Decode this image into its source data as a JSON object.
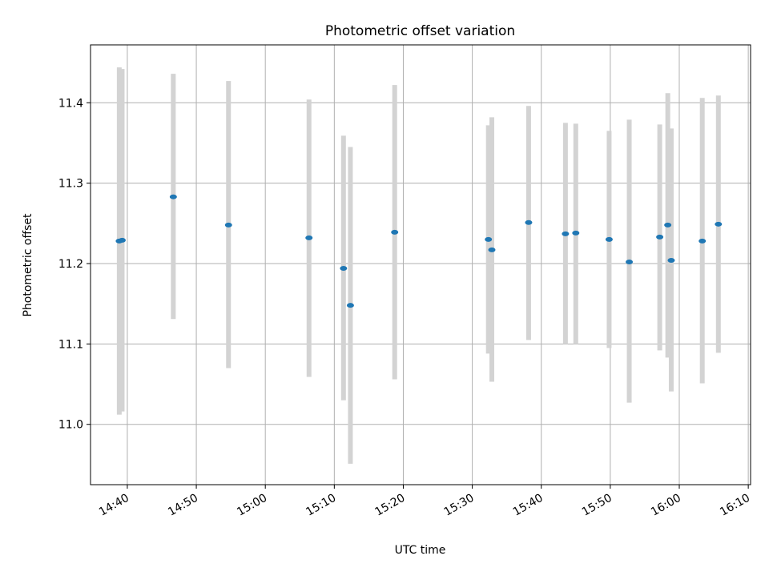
{
  "chart_data": {
    "type": "scatter",
    "title": "Photometric offset variation",
    "xlabel": "UTC time",
    "ylabel": "Photometric offset",
    "xlim": [
      "14:34:40",
      "16:10:20"
    ],
    "ylim": [
      10.925,
      11.472
    ],
    "grid": true,
    "x_ticks": [
      "14:40",
      "14:50",
      "15:00",
      "15:10",
      "15:20",
      "15:30",
      "15:40",
      "15:50",
      "16:00",
      "16:10"
    ],
    "y_ticks": [
      11.0,
      11.1,
      11.2,
      11.3,
      11.4
    ],
    "y_tick_labels": [
      "11.0",
      "11.1",
      "11.2",
      "11.3",
      "11.4"
    ],
    "series": [
      {
        "marker_color": "#1f77b4",
        "errorbar_color": "#d3d3d3",
        "points": [
          {
            "x": "14:38:50",
            "y": 11.228,
            "yerr_low": 11.012,
            "yerr_high": 11.444
          },
          {
            "x": "14:39:15",
            "y": 11.229,
            "yerr_low": 11.016,
            "yerr_high": 11.442
          },
          {
            "x": "14:46:40",
            "y": 11.283,
            "yerr_low": 11.131,
            "yerr_high": 11.436
          },
          {
            "x": "14:54:40",
            "y": 11.248,
            "yerr_low": 11.07,
            "yerr_high": 11.427
          },
          {
            "x": "15:06:20",
            "y": 11.232,
            "yerr_low": 11.059,
            "yerr_high": 11.404
          },
          {
            "x": "15:11:20",
            "y": 11.194,
            "yerr_low": 11.03,
            "yerr_high": 11.359
          },
          {
            "x": "15:12:20",
            "y": 11.148,
            "yerr_low": 10.951,
            "yerr_high": 11.345
          },
          {
            "x": "15:18:45",
            "y": 11.239,
            "yerr_low": 11.056,
            "yerr_high": 11.422
          },
          {
            "x": "15:32:20",
            "y": 11.23,
            "yerr_low": 11.088,
            "yerr_high": 11.372
          },
          {
            "x": "15:32:50",
            "y": 11.217,
            "yerr_low": 11.053,
            "yerr_high": 11.382
          },
          {
            "x": "15:38:10",
            "y": 11.251,
            "yerr_low": 11.105,
            "yerr_high": 11.396
          },
          {
            "x": "15:43:30",
            "y": 11.237,
            "yerr_low": 11.1,
            "yerr_high": 11.375
          },
          {
            "x": "15:45:00",
            "y": 11.238,
            "yerr_low": 11.1,
            "yerr_high": 11.374
          },
          {
            "x": "15:49:50",
            "y": 11.23,
            "yerr_low": 11.095,
            "yerr_high": 11.365
          },
          {
            "x": "15:52:45",
            "y": 11.202,
            "yerr_low": 11.027,
            "yerr_high": 11.379
          },
          {
            "x": "15:57:10",
            "y": 11.233,
            "yerr_low": 11.092,
            "yerr_high": 11.373
          },
          {
            "x": "15:58:20",
            "y": 11.248,
            "yerr_low": 11.083,
            "yerr_high": 11.412
          },
          {
            "x": "15:58:50",
            "y": 11.204,
            "yerr_low": 11.041,
            "yerr_high": 11.368
          },
          {
            "x": "16:03:20",
            "y": 11.228,
            "yerr_low": 11.051,
            "yerr_high": 11.406
          },
          {
            "x": "16:05:40",
            "y": 11.249,
            "yerr_low": 11.089,
            "yerr_high": 11.409
          }
        ]
      }
    ]
  }
}
